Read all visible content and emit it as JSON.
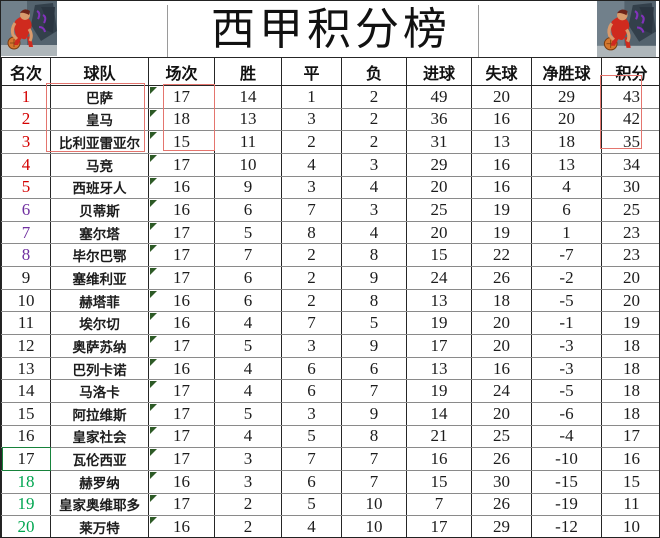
{
  "title": "西甲积分榜",
  "icons": {
    "corner_art": "basketball-player-illustration"
  },
  "colors": {
    "rank-red": "#d40000",
    "rank-purple": "#7030a0",
    "rank-green": "#00a650",
    "annotation-red": "#e4756e",
    "selection-green": "#17823b",
    "triangle-green": "#2d5a26"
  },
  "annotations": {
    "top3_teams_box": "red-rectangle",
    "top3_played_box": "red-rectangle",
    "top3_points_box": "red-rectangle",
    "rank17_cell_outline": "green-rectangle"
  },
  "table": {
    "columns": [
      {
        "key": "rank",
        "label": "名次"
      },
      {
        "key": "team",
        "label": "球队"
      },
      {
        "key": "played",
        "label": "场次"
      },
      {
        "key": "wins",
        "label": "胜"
      },
      {
        "key": "draws",
        "label": "平"
      },
      {
        "key": "losses",
        "label": "负"
      },
      {
        "key": "goals_for",
        "label": "进球"
      },
      {
        "key": "goals_against",
        "label": "失球"
      },
      {
        "key": "goal_diff",
        "label": "净胜球"
      },
      {
        "key": "points",
        "label": "积分"
      }
    ],
    "rows": [
      {
        "rank": "1",
        "team": "巴萨",
        "played": "17",
        "wins": "14",
        "draws": "1",
        "losses": "2",
        "goals_for": "49",
        "goals_against": "20",
        "goal_diff": "29",
        "points": "43",
        "rank_color": "#d40000"
      },
      {
        "rank": "2",
        "team": "皇马",
        "played": "18",
        "wins": "13",
        "draws": "3",
        "losses": "2",
        "goals_for": "36",
        "goals_against": "16",
        "goal_diff": "20",
        "points": "42",
        "rank_color": "#d40000"
      },
      {
        "rank": "3",
        "team": "比利亚雷亚尔",
        "played": "15",
        "wins": "11",
        "draws": "2",
        "losses": "2",
        "goals_for": "31",
        "goals_against": "13",
        "goal_diff": "18",
        "points": "35",
        "rank_color": "#d40000"
      },
      {
        "rank": "4",
        "team": "马竞",
        "played": "17",
        "wins": "10",
        "draws": "4",
        "losses": "3",
        "goals_for": "29",
        "goals_against": "16",
        "goal_diff": "13",
        "points": "34",
        "rank_color": "#d40000"
      },
      {
        "rank": "5",
        "team": "西班牙人",
        "played": "16",
        "wins": "9",
        "draws": "3",
        "losses": "4",
        "goals_for": "20",
        "goals_against": "16",
        "goal_diff": "4",
        "points": "30",
        "rank_color": "#d40000"
      },
      {
        "rank": "6",
        "team": "贝蒂斯",
        "played": "16",
        "wins": "6",
        "draws": "7",
        "losses": "3",
        "goals_for": "25",
        "goals_against": "19",
        "goal_diff": "6",
        "points": "25",
        "rank_color": "#7030a0"
      },
      {
        "rank": "7",
        "team": "塞尔塔",
        "played": "17",
        "wins": "5",
        "draws": "8",
        "losses": "4",
        "goals_for": "20",
        "goals_against": "19",
        "goal_diff": "1",
        "points": "23",
        "rank_color": "#7030a0"
      },
      {
        "rank": "8",
        "team": "毕尔巴鄂",
        "played": "17",
        "wins": "7",
        "draws": "2",
        "losses": "8",
        "goals_for": "15",
        "goals_against": "22",
        "goal_diff": "-7",
        "points": "23",
        "rank_color": "#7030a0"
      },
      {
        "rank": "9",
        "team": "塞维利亚",
        "played": "17",
        "wins": "6",
        "draws": "2",
        "losses": "9",
        "goals_for": "24",
        "goals_against": "26",
        "goal_diff": "-2",
        "points": "20",
        "rank_color": "#1c1c1c"
      },
      {
        "rank": "10",
        "team": "赫塔菲",
        "played": "16",
        "wins": "6",
        "draws": "2",
        "losses": "8",
        "goals_for": "13",
        "goals_against": "18",
        "goal_diff": "-5",
        "points": "20",
        "rank_color": "#1c1c1c"
      },
      {
        "rank": "11",
        "team": "埃尔切",
        "played": "16",
        "wins": "4",
        "draws": "7",
        "losses": "5",
        "goals_for": "19",
        "goals_against": "20",
        "goal_diff": "-1",
        "points": "19",
        "rank_color": "#1c1c1c"
      },
      {
        "rank": "12",
        "team": "奥萨苏纳",
        "played": "17",
        "wins": "5",
        "draws": "3",
        "losses": "9",
        "goals_for": "17",
        "goals_against": "20",
        "goal_diff": "-3",
        "points": "18",
        "rank_color": "#1c1c1c"
      },
      {
        "rank": "13",
        "team": "巴列卡诺",
        "played": "16",
        "wins": "4",
        "draws": "6",
        "losses": "6",
        "goals_for": "13",
        "goals_against": "16",
        "goal_diff": "-3",
        "points": "18",
        "rank_color": "#1c1c1c"
      },
      {
        "rank": "14",
        "team": "马洛卡",
        "played": "17",
        "wins": "4",
        "draws": "6",
        "losses": "7",
        "goals_for": "19",
        "goals_against": "24",
        "goal_diff": "-5",
        "points": "18",
        "rank_color": "#1c1c1c"
      },
      {
        "rank": "15",
        "team": "阿拉维斯",
        "played": "17",
        "wins": "5",
        "draws": "3",
        "losses": "9",
        "goals_for": "14",
        "goals_against": "20",
        "goal_diff": "-6",
        "points": "18",
        "rank_color": "#1c1c1c"
      },
      {
        "rank": "16",
        "team": "皇家社会",
        "played": "17",
        "wins": "4",
        "draws": "5",
        "losses": "8",
        "goals_for": "21",
        "goals_against": "25",
        "goal_diff": "-4",
        "points": "17",
        "rank_color": "#1c1c1c"
      },
      {
        "rank": "17",
        "team": "瓦伦西亚",
        "played": "17",
        "wins": "3",
        "draws": "7",
        "losses": "7",
        "goals_for": "16",
        "goals_against": "26",
        "goal_diff": "-10",
        "points": "16",
        "rank_color": "#1c1c1c"
      },
      {
        "rank": "18",
        "team": "赫罗纳",
        "played": "16",
        "wins": "3",
        "draws": "6",
        "losses": "7",
        "goals_for": "15",
        "goals_against": "30",
        "goal_diff": "-15",
        "points": "15",
        "rank_color": "#00a650"
      },
      {
        "rank": "19",
        "team": "皇家奥维耶多",
        "played": "17",
        "wins": "2",
        "draws": "5",
        "losses": "10",
        "goals_for": "7",
        "goals_against": "26",
        "goal_diff": "-19",
        "points": "11",
        "rank_color": "#00a650"
      },
      {
        "rank": "20",
        "team": "莱万特",
        "played": "16",
        "wins": "2",
        "draws": "4",
        "losses": "10",
        "goals_for": "17",
        "goals_against": "29",
        "goal_diff": "-12",
        "points": "10",
        "rank_color": "#00a650"
      }
    ]
  }
}
